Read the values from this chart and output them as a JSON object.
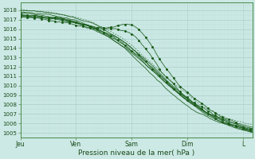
{
  "bg_color": "#cce9e5",
  "plot_bg_color": "#cce9e5",
  "grid_color_major": "#aacfcb",
  "grid_color_minor": "#bbdbd7",
  "line_color": "#1a5c1a",
  "ylim": [
    1004.5,
    1018.8
  ],
  "yticks": [
    1005,
    1006,
    1007,
    1008,
    1009,
    1010,
    1011,
    1012,
    1013,
    1014,
    1015,
    1016,
    1017,
    1018
  ],
  "xlabel": "Pression niveau de la mer( hPa )",
  "xtick_labels": [
    "Jeu",
    "Ven",
    "Sam",
    "Dim",
    "L"
  ],
  "xtick_positions": [
    0,
    24,
    48,
    72,
    96
  ],
  "xlim": [
    0,
    100
  ],
  "figsize": [
    3.2,
    2.0
  ],
  "dpi": 100
}
